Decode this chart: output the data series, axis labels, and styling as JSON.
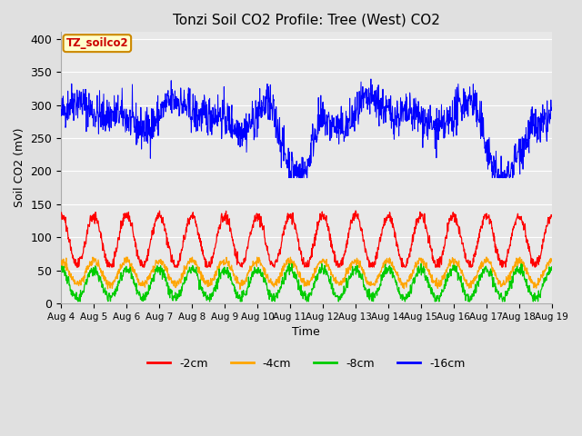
{
  "title": "Tonzi Soil CO2 Profile: Tree (West) CO2",
  "ylabel": "Soil CO2 (mV)",
  "xlabel": "Time",
  "bg_color": "#e0e0e0",
  "plot_bg": "#e8e8e8",
  "ylim": [
    0,
    410
  ],
  "yticks": [
    0,
    50,
    100,
    150,
    200,
    250,
    300,
    350,
    400
  ],
  "xtick_labels": [
    "Aug 4",
    "Aug 5",
    "Aug 6",
    "Aug 7",
    "Aug 8",
    "Aug 9",
    "Aug 10",
    "Aug 11",
    "Aug 12",
    "Aug 13",
    "Aug 14",
    "Aug 15",
    "Aug 16",
    "Aug 17",
    "Aug 18",
    "Aug 19"
  ],
  "label_box_color": "#ffffcc",
  "label_box_edge": "#cc8800",
  "label_text": "TZ_soilco2",
  "label_text_color": "#cc0000",
  "legend_entries": [
    "-2cm",
    "-4cm",
    "-8cm",
    "-16cm"
  ],
  "legend_colors": [
    "#ff0000",
    "#ffa500",
    "#00cc00",
    "#0000ff"
  ],
  "line_colors": {
    "blue": "#0000ff",
    "red": "#ff0000",
    "orange": "#ffa500",
    "green": "#00cc00"
  },
  "n_points": 1440,
  "days": 15,
  "seed": 42
}
